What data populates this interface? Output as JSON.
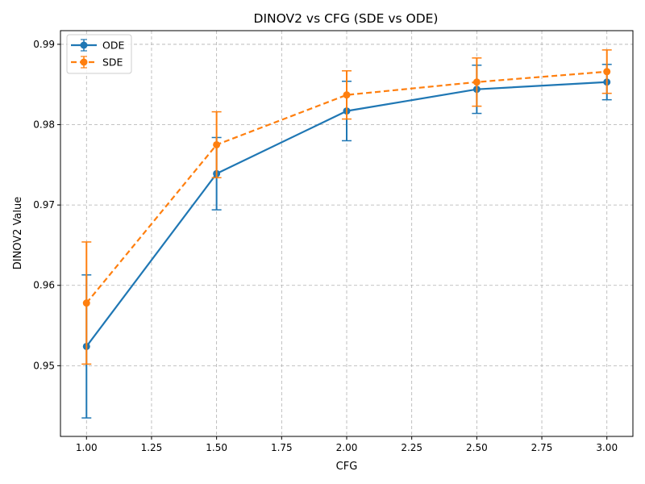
{
  "chart_data": {
    "type": "line",
    "title": "DINOV2 vs CFG (SDE vs ODE)",
    "xlabel": "CFG",
    "ylabel": "DINOV2 Value",
    "x": [
      1.0,
      1.5,
      2.0,
      2.5,
      3.0
    ],
    "xlim": [
      0.9,
      3.1
    ],
    "ylim": [
      0.9412,
      0.9917
    ],
    "xticks": [
      1.0,
      1.25,
      1.5,
      1.75,
      2.0,
      2.25,
      2.5,
      2.75,
      3.0
    ],
    "xtick_labels": [
      "1.00",
      "1.25",
      "1.50",
      "1.75",
      "2.00",
      "2.25",
      "2.50",
      "2.75",
      "3.00"
    ],
    "yticks": [
      0.95,
      0.96,
      0.97,
      0.98,
      0.99
    ],
    "ytick_labels": [
      "0.95",
      "0.96",
      "0.97",
      "0.98",
      "0.99"
    ],
    "grid": true,
    "legend_position": "top-left",
    "series": [
      {
        "name": "ODE",
        "color": "#1f77b4",
        "linestyle": "solid",
        "values": [
          0.9524,
          0.9739,
          0.9817,
          0.9844,
          0.9853
        ],
        "errors": [
          0.0089,
          0.0045,
          0.0037,
          0.003,
          0.0022
        ]
      },
      {
        "name": "SDE",
        "color": "#ff7f0e",
        "linestyle": "dashed",
        "values": [
          0.9578,
          0.9775,
          0.9837,
          0.9853,
          0.9866
        ],
        "errors": [
          0.0076,
          0.0041,
          0.003,
          0.003,
          0.0027
        ]
      }
    ]
  }
}
